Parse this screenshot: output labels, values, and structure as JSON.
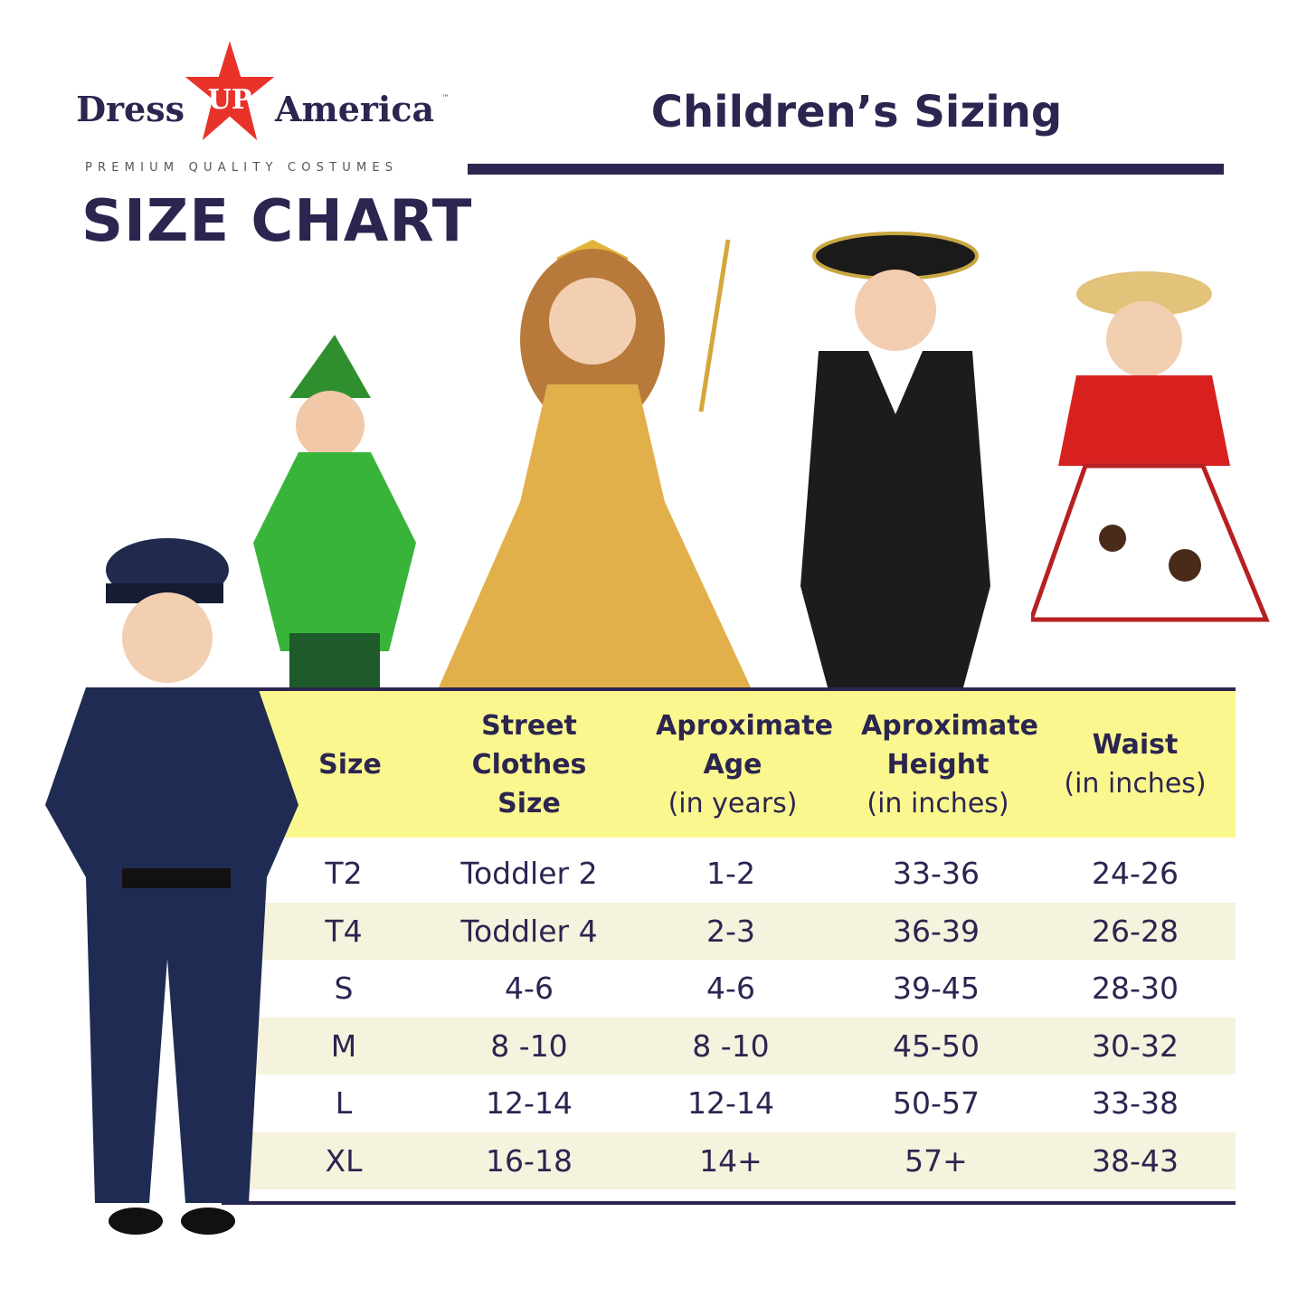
{
  "brand": {
    "left": "Dress",
    "star": "UP",
    "right": "America",
    "tm": "™",
    "tagline": "PREMIUM QUALITY COSTUMES"
  },
  "heading": "SIZE CHART",
  "title": "Children’s Sizing",
  "colors": {
    "navy": "#2b2550",
    "header_yellow": "#fbf78f",
    "stripe": "#f5f2dd",
    "star_red": "#e8322a"
  },
  "table": {
    "headers": [
      {
        "bold": "Size",
        "sub": ""
      },
      {
        "bold": "Street Clothes Size",
        "sub": ""
      },
      {
        "bold": "Aproximate Age",
        "sub": "(in years)"
      },
      {
        "bold": "Aproximate Height",
        "sub": "(in inches)"
      },
      {
        "bold": "Waist",
        "sub": "(in inches)"
      }
    ],
    "rows": [
      [
        "T2",
        "Toddler 2",
        "1-2",
        "33-36",
        "24-26"
      ],
      [
        "T4",
        "Toddler 4",
        "2-3",
        "36-39",
        "26-28"
      ],
      [
        "S",
        "4-6",
        "4-6",
        "39-45",
        "28-30"
      ],
      [
        "M",
        "8 -10",
        "8 -10",
        "45-50",
        "30-32"
      ],
      [
        "L",
        "12-14",
        "12-14",
        "50-57",
        "33-38"
      ],
      [
        "XL",
        "16-18",
        "14+",
        "57+",
        "38-43"
      ]
    ]
  },
  "photos": [
    "police officer costume",
    "green archer costume",
    "gold princess gown",
    "colonial costume",
    "cowgirl costume"
  ]
}
